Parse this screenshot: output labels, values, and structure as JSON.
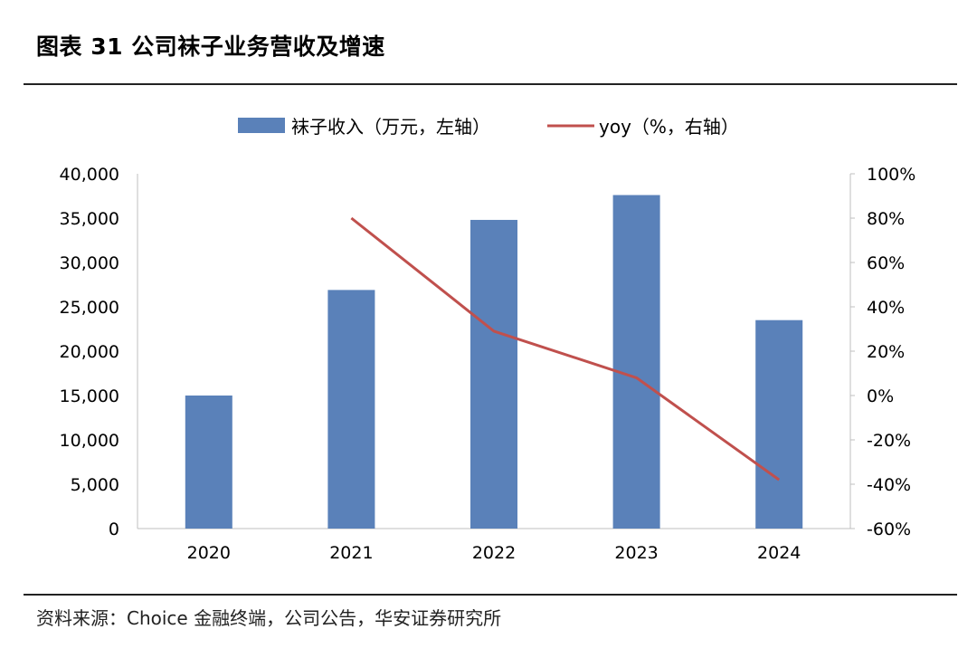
{
  "figure": {
    "title": "图表 31 公司袜子业务营收及增速",
    "source": "资料来源：Choice 金融终端，公司公告，华安证券研究所"
  },
  "chart_data": {
    "type": "bar",
    "categories": [
      "2020",
      "2021",
      "2022",
      "2023",
      "2024"
    ],
    "series": [
      {
        "name": "袜子收入（万元，左轴）",
        "kind": "bar",
        "axis": "left",
        "color": "#5a81b9",
        "values": [
          15000,
          26900,
          34800,
          37600,
          23500
        ]
      },
      {
        "name": "yoy（%，右轴）",
        "kind": "line",
        "axis": "right",
        "color": "#c0504d",
        "values": [
          null,
          80,
          29,
          8,
          -38
        ]
      }
    ],
    "left_axis": {
      "min": 0,
      "max": 40000,
      "step": 5000,
      "tick_labels": [
        "0",
        "5,000",
        "10,000",
        "15,000",
        "20,000",
        "25,000",
        "30,000",
        "35,000",
        "40,000"
      ]
    },
    "right_axis": {
      "min": -60,
      "max": 100,
      "step": 20,
      "tick_labels": [
        "-60%",
        "-40%",
        "-20%",
        "0%",
        "20%",
        "40%",
        "60%",
        "80%",
        "100%"
      ]
    },
    "grid": false,
    "legend_position": "top"
  }
}
